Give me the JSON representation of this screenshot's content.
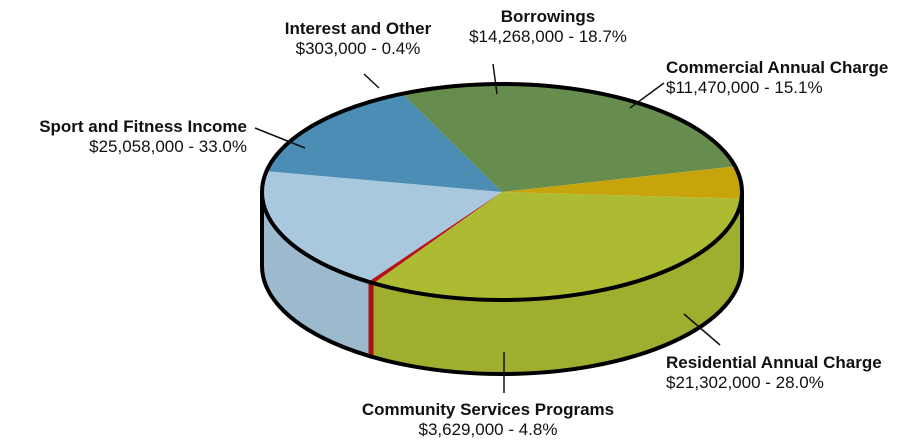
{
  "chart_data": {
    "type": "pie",
    "style": "3d",
    "slices": [
      {
        "name": "Borrowings",
        "value": 14268000,
        "value_label": "$14,268,000",
        "percent": 18.7,
        "percent_label": "18.7%",
        "color": "#a9c7dd"
      },
      {
        "name": "Commercial Annual Charge",
        "value": 11470000,
        "value_label": "$11,470,000",
        "percent": 15.1,
        "percent_label": "15.1%",
        "color": "#4b8db5"
      },
      {
        "name": "Residential Annual Charge",
        "value": 21302000,
        "value_label": "$21,302,000",
        "percent": 28.0,
        "percent_label": "28.0%",
        "color": "#678d4e"
      },
      {
        "name": "Community Services Programs",
        "value": 3629000,
        "value_label": "$3,629,000",
        "percent": 4.8,
        "percent_label": "4.8%",
        "color": "#c8a40c"
      },
      {
        "name": "Sport and Fitness Income",
        "value": 25058000,
        "value_label": "$25,058,000",
        "percent": 33.0,
        "percent_label": "33.0%",
        "color": "#acbb32"
      },
      {
        "name": "Interest and Other",
        "value": 303000,
        "value_label": "$303,000",
        "percent": 0.4,
        "percent_label": "0.4%",
        "color": "#b5121b"
      }
    ],
    "separator": " - "
  }
}
